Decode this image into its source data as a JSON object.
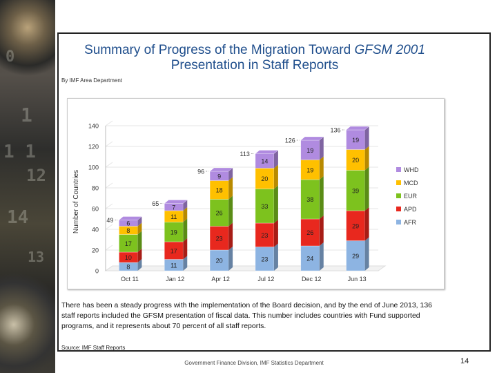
{
  "slide": {
    "title_main": "Summary of Progress of the Migration Toward ",
    "title_emph": "GFSM 2001",
    "title_line2": "Presentation in Staff Reports",
    "byline": "By IMF Area Department",
    "caption": "There has been a steady progress with the implementation of the Board decision, and by the end of June 2013, 136 staff reports included the GFSM presentation of fiscal data. This number includes countries with Fund supported programs, and it represents about 70 percent of all staff reports.",
    "source": "Source: IMF Staff Reports",
    "footer": "Government Finance Division, IMF Statistics Department",
    "page_number": "14"
  },
  "chart_data": {
    "type": "bar",
    "stacked": true,
    "ylabel": "Number of Countries",
    "ylim": [
      0,
      140
    ],
    "yticks": [
      0,
      20,
      40,
      60,
      80,
      100,
      120,
      140
    ],
    "categories": [
      "Oct 11",
      "Jan 12",
      "Apr 12",
      "Jul 12",
      "Dec 12",
      "Jun 13"
    ],
    "series": [
      {
        "name": "AFR",
        "color": "#8db4e2",
        "values": [
          8,
          11,
          20,
          23,
          24,
          29
        ]
      },
      {
        "name": "APD",
        "color": "#e8281e",
        "values": [
          10,
          17,
          23,
          23,
          26,
          29
        ]
      },
      {
        "name": "EUR",
        "color": "#7dc21e",
        "values": [
          17,
          19,
          26,
          33,
          38,
          39
        ]
      },
      {
        "name": "MCD",
        "color": "#ffc000",
        "values": [
          8,
          11,
          18,
          20,
          19,
          20
        ]
      },
      {
        "name": "WHD",
        "color": "#b08be0",
        "values": [
          6,
          7,
          9,
          14,
          19,
          19
        ]
      }
    ],
    "totals": [
      49,
      65,
      96,
      113,
      126,
      136
    ],
    "legend_position": "right"
  }
}
